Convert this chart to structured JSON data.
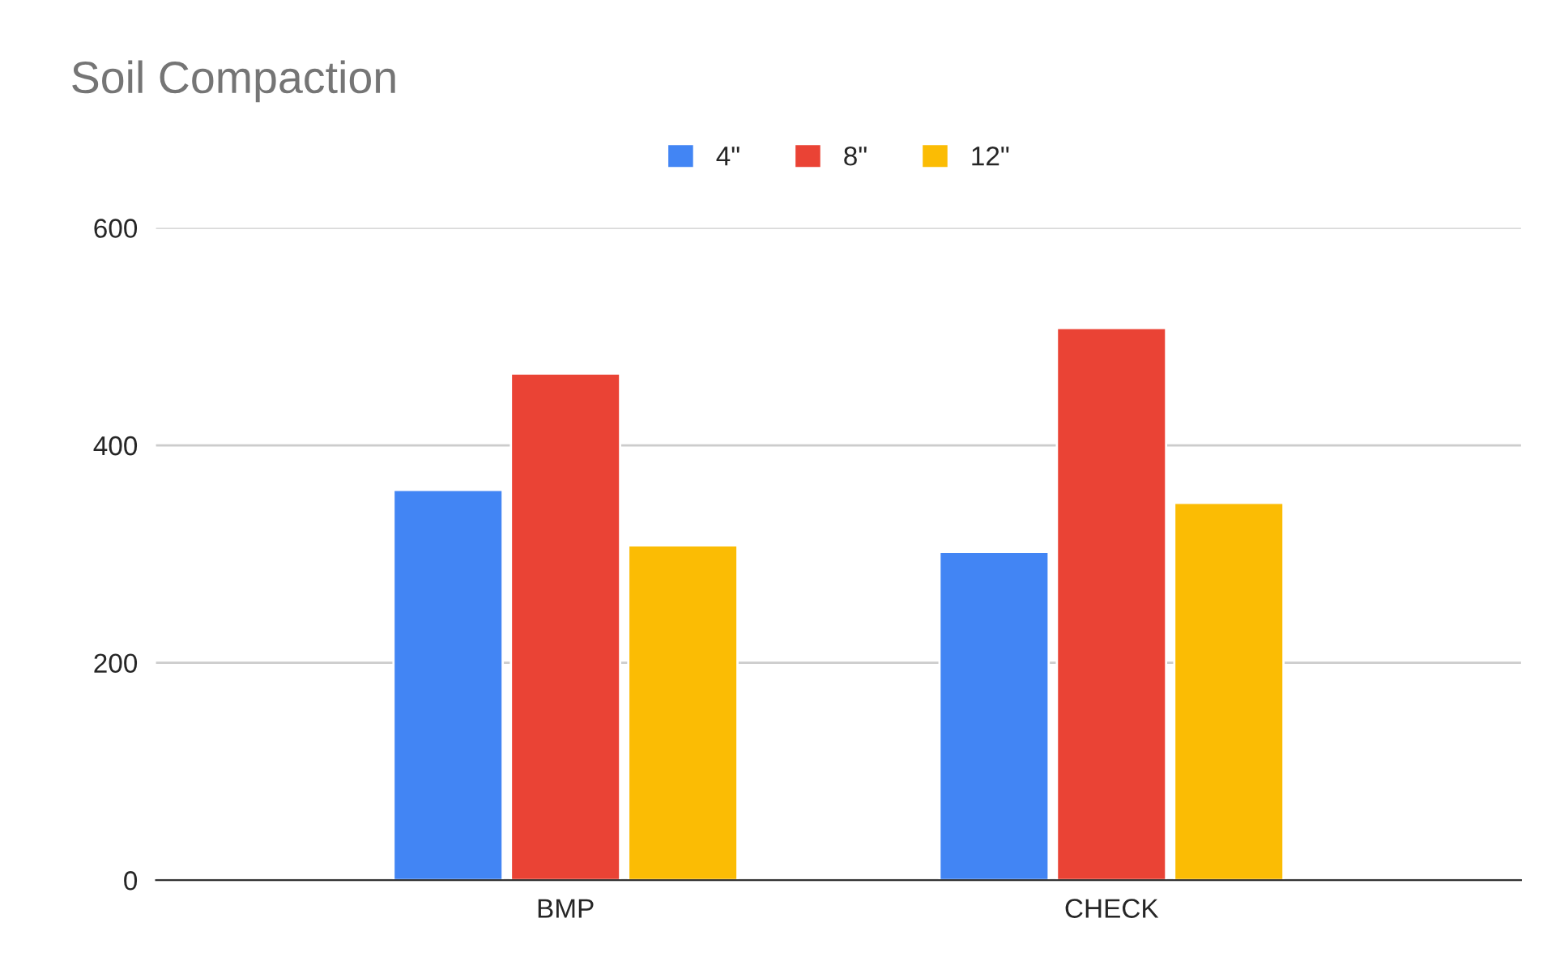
{
  "chart_data": {
    "type": "bar",
    "title": "Soil Compaction",
    "categories": [
      "BMP",
      "CHECK"
    ],
    "series": [
      {
        "name": "4\"",
        "color": "#4285f4",
        "values": [
          359,
          302
        ]
      },
      {
        "name": "8\"",
        "color": "#ea4335",
        "values": [
          466,
          508
        ]
      },
      {
        "name": "12\"",
        "color": "#fbbc04",
        "values": [
          308,
          347
        ]
      }
    ],
    "ylim": [
      0,
      600
    ],
    "yticks": [
      0,
      200,
      400,
      600
    ],
    "grid": "y",
    "legend": "top"
  }
}
